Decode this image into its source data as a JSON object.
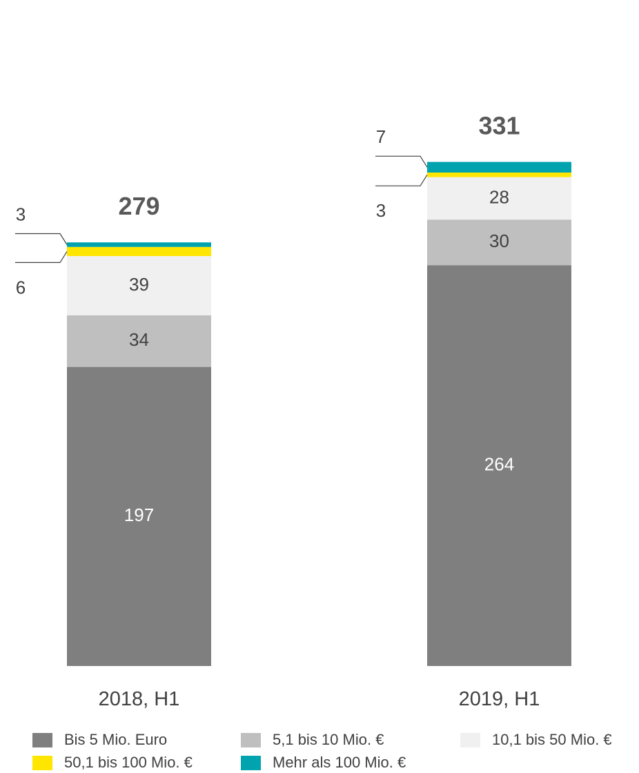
{
  "chart_data": {
    "type": "bar",
    "stacked": true,
    "categories": [
      "2018, H1",
      "2019, H1"
    ],
    "totals": [
      "279",
      "331"
    ],
    "series": [
      {
        "name": "Bis 5 Mio. Euro",
        "values": [
          197,
          264
        ],
        "color": "#7f7f7f",
        "label_color": "#ffffff"
      },
      {
        "name": "5,1 bis 10 Mio. €",
        "values": [
          34,
          30
        ],
        "color": "#bfbfbf",
        "label_color": "#404040"
      },
      {
        "name": "10,1 bis 50  Mio. €",
        "values": [
          39,
          28
        ],
        "color": "#f0f0f0",
        "label_color": "#404040"
      },
      {
        "name": "50,1 bis 100  Mio. €",
        "values": [
          6,
          3
        ],
        "color": "#ffe600",
        "label_color": "#404040"
      },
      {
        "name": "Mehr als 100 Mio. €",
        "values": [
          3,
          7
        ],
        "color": "#00a3ae",
        "label_color": "#404040"
      }
    ],
    "callouts": [
      {
        "category": 0,
        "top": "3",
        "bottom": "6"
      },
      {
        "category": 1,
        "top": "7",
        "bottom": "3"
      }
    ],
    "legend_position": "bottom",
    "grid": false,
    "ylim": [
      0,
      331
    ]
  }
}
